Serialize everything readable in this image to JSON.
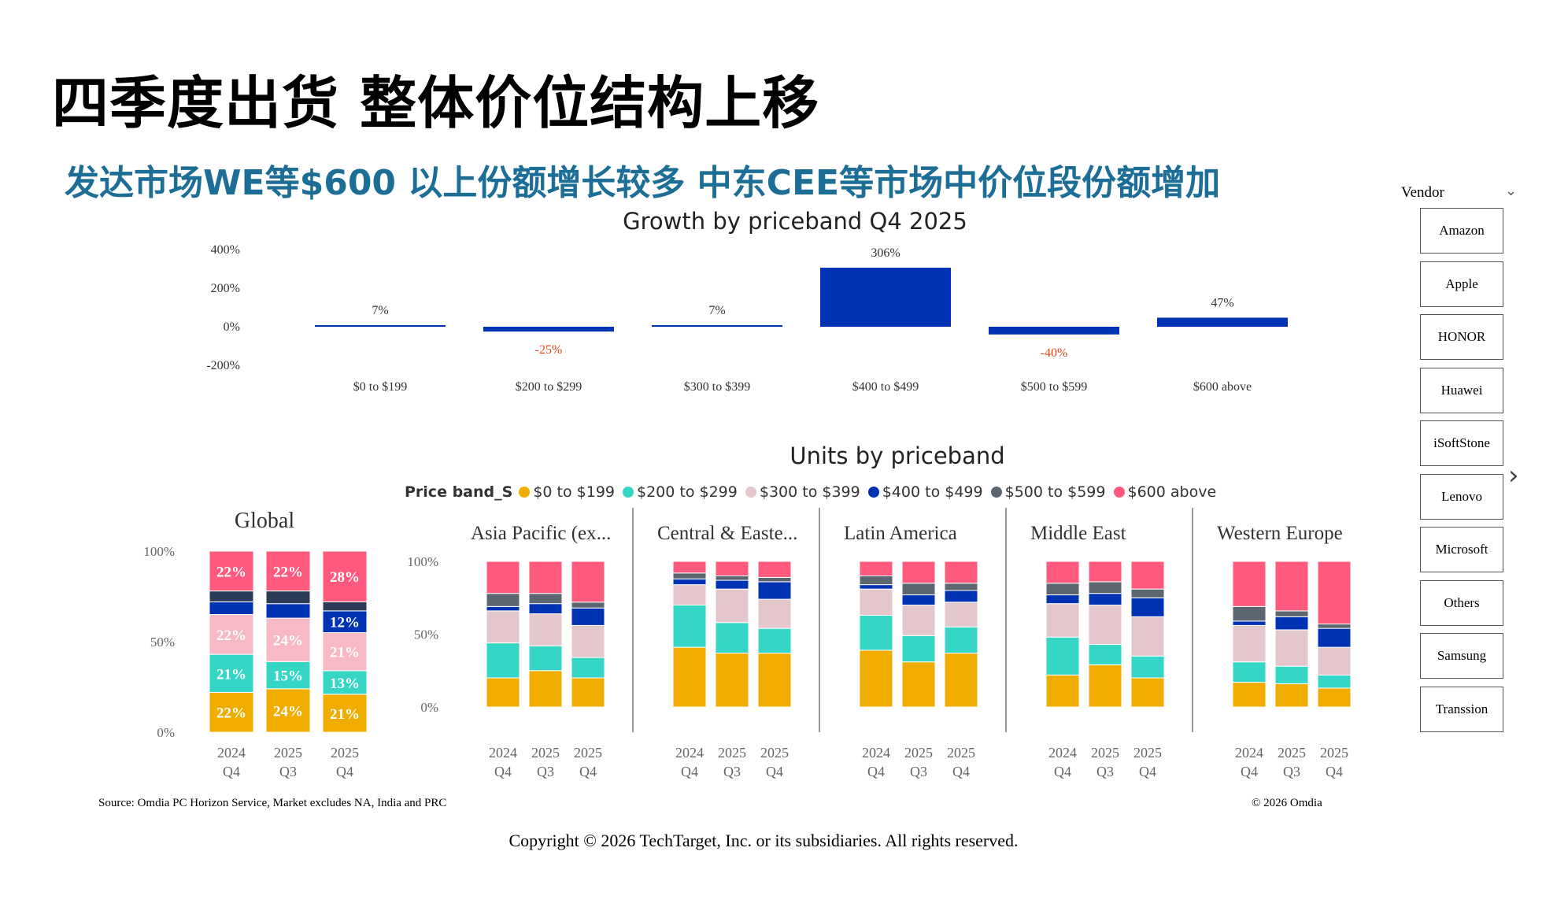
{
  "page": {
    "title": "四季度出货 整体价位结构上移",
    "subtitle": "发达市场WE等$600 以上份额增长较多 中东CEE等市场中价位段份额增加",
    "source": "Source: Omdia PC Horizon Service, Market excludes NA, India and PRC",
    "omdia": "© 2026 Omdia",
    "copyright": "Copyright © 2026 TechTarget, Inc. or its subsidiaries. All rights reserved."
  },
  "vendor_filter": {
    "label": "Vendor",
    "items": [
      "Amazon",
      "Apple",
      "HONOR",
      "Huawei",
      "iSoftStone",
      "Lenovo",
      "Microsoft",
      "Others",
      "Samsung",
      "Transsion"
    ]
  },
  "colors": {
    "growth_bar": "#0033b3",
    "negative_label": "#e8441c",
    "bands": [
      "#f0ad00",
      "#35d6c6",
      "#e3c7cc",
      "#0033b3",
      "#5c6670",
      "#ff5a7e"
    ],
    "global_bands": [
      "#f0ad00",
      "#35d6c6",
      "#f8b9c6",
      "#0033b3",
      "#2b3a55",
      "#ff5a7e"
    ]
  },
  "chart_data": [
    {
      "type": "bar",
      "title": "Growth by priceband Q4 2025",
      "categories": [
        "$0 to $199",
        "$200 to $299",
        "$300 to $399",
        "$400 to $499",
        "$500 to $599",
        "$600 above"
      ],
      "values": [
        7,
        -25,
        7,
        306,
        -40,
        47
      ],
      "value_labels": [
        "7%",
        "-25%",
        "7%",
        "306%",
        "-40%",
        "47%"
      ],
      "y_ticks": [
        "400%",
        "200%",
        "0%",
        "-200%"
      ],
      "ylim": [
        -200,
        400
      ],
      "grid": false
    },
    {
      "type": "bar",
      "stacked": true,
      "title": "Units by priceband",
      "legend": {
        "title": "Price band_S",
        "entries": [
          "$0 to $199",
          "$200 to $299",
          "$300 to $399",
          "$400 to $499",
          "$500 to $599",
          "$600 above"
        ],
        "placement": "top"
      },
      "y_ticks": [
        "100%",
        "50%",
        "0%"
      ],
      "x_labels": [
        [
          "2024",
          "Q4"
        ],
        [
          "2025",
          "Q3"
        ],
        [
          "2025",
          "Q4"
        ]
      ],
      "panels": [
        {
          "name": "Global",
          "series_values": [
            [
              22,
              24,
              21
            ],
            [
              21,
              15,
              13
            ],
            [
              22,
              24,
              21
            ],
            [
              7,
              8,
              12
            ],
            [
              6,
              7,
              5
            ],
            [
              22,
              22,
              28
            ]
          ],
          "labels": [
            [
              "22%",
              "24%",
              "21%"
            ],
            [
              "21%",
              "15%",
              "13%"
            ],
            [
              "22%",
              "24%",
              "21%"
            ],
            [
              "",
              "",
              "12%"
            ],
            [
              "",
              "",
              ""
            ],
            [
              "22%",
              "22%",
              "28%"
            ]
          ]
        },
        {
          "name": "Asia Pacific (ex...",
          "series_values": [
            [
              20,
              25,
              20
            ],
            [
              24,
              17,
              14
            ],
            [
              22,
              22,
              22
            ],
            [
              3,
              7,
              12
            ],
            [
              9,
              7,
              4
            ],
            [
              22,
              22,
              28
            ]
          ]
        },
        {
          "name": "Central & Easte...",
          "series_values": [
            [
              41,
              37,
              37
            ],
            [
              29,
              21,
              17
            ],
            [
              14,
              23,
              20
            ],
            [
              4,
              6,
              12
            ],
            [
              4,
              3,
              3
            ],
            [
              8,
              10,
              11
            ]
          ]
        },
        {
          "name": "Latin America",
          "series_values": [
            [
              39,
              31,
              37
            ],
            [
              24,
              18,
              18
            ],
            [
              18,
              21,
              17
            ],
            [
              3,
              7,
              8
            ],
            [
              6,
              8,
              5
            ],
            [
              10,
              15,
              15
            ]
          ]
        },
        {
          "name": "Middle East",
          "series_values": [
            [
              22,
              29,
              20
            ],
            [
              26,
              14,
              15
            ],
            [
              23,
              27,
              27
            ],
            [
              6,
              8,
              13
            ],
            [
              8,
              8,
              6
            ],
            [
              15,
              14,
              19
            ]
          ]
        },
        {
          "name": "Western Europe",
          "series_values": [
            [
              17,
              16,
              13
            ],
            [
              14,
              12,
              9
            ],
            [
              25,
              25,
              19
            ],
            [
              3,
              9,
              13
            ],
            [
              10,
              4,
              3
            ],
            [
              31,
              34,
              43
            ]
          ]
        }
      ]
    }
  ]
}
